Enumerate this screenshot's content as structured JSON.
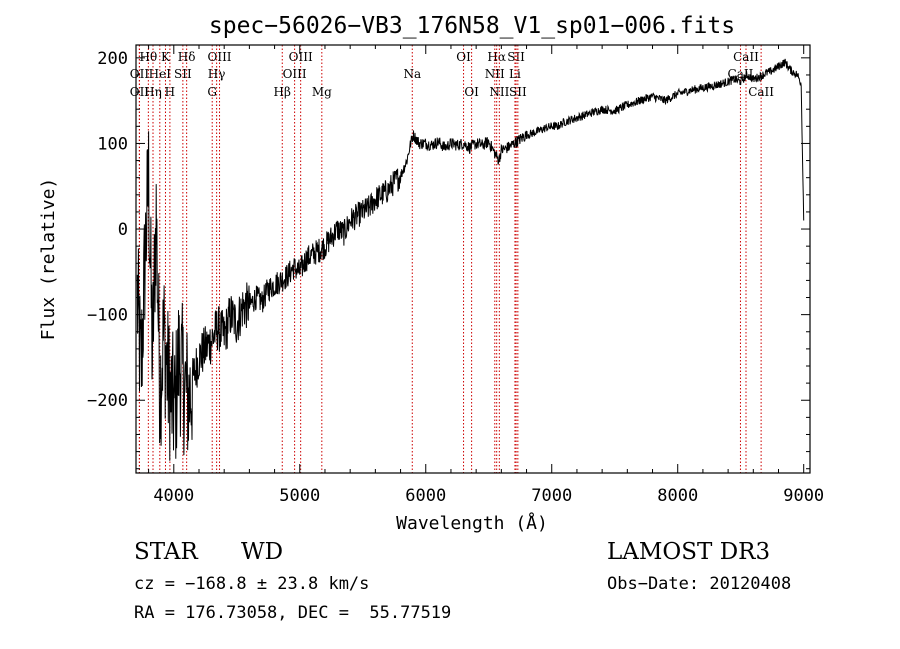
{
  "chart_data": {
    "type": "line",
    "title": "spec−56026−VB3_176N58_V1_sp01−006.fits",
    "xlabel": "Wavelength (Å)",
    "ylabel": "Flux (relative)",
    "xlim": [
      3700,
      9050
    ],
    "ylim": [
      -285,
      215
    ],
    "xticks": [
      4000,
      5000,
      6000,
      7000,
      8000,
      9000
    ],
    "yticks": [
      -200,
      -100,
      0,
      100,
      200
    ],
    "series": [
      {
        "name": "flux",
        "x": [
          3710,
          3740,
          3770,
          3800,
          3830,
          3860,
          3890,
          3920,
          3950,
          3980,
          4010,
          4040,
          4080,
          4120,
          4160,
          4200,
          4250,
          4300,
          4350,
          4400,
          4450,
          4500,
          4550,
          4600,
          4650,
          4700,
          4750,
          4800,
          4850,
          4900,
          4950,
          5000,
          5050,
          5100,
          5150,
          5200,
          5250,
          5300,
          5350,
          5400,
          5450,
          5500,
          5550,
          5600,
          5650,
          5700,
          5750,
          5800,
          5850,
          5880,
          5900,
          5950,
          6000,
          6050,
          6100,
          6150,
          6200,
          6250,
          6300,
          6350,
          6400,
          6450,
          6500,
          6550,
          6580,
          6600,
          6650,
          6700,
          6750,
          6800,
          6850,
          6900,
          6950,
          7000,
          7050,
          7100,
          7200,
          7300,
          7400,
          7500,
          7600,
          7700,
          7800,
          7900,
          8000,
          8100,
          8200,
          8300,
          8400,
          8450,
          8500,
          8550,
          8600,
          8650,
          8700,
          8750,
          8800,
          8850,
          8900,
          8950,
          8980,
          8990,
          9000
        ],
        "y": [
          -80,
          -170,
          -40,
          60,
          -150,
          20,
          -190,
          -120,
          -170,
          -200,
          -210,
          -150,
          -180,
          -200,
          -170,
          -150,
          -140,
          -130,
          -115,
          -125,
          -100,
          -110,
          -90,
          -90,
          -80,
          -85,
          -70,
          -65,
          -60,
          -55,
          -45,
          -50,
          -35,
          -30,
          -25,
          -20,
          -10,
          0,
          -5,
          10,
          15,
          20,
          25,
          35,
          40,
          45,
          55,
          62,
          80,
          100,
          110,
          100,
          100,
          98,
          102,
          95,
          100,
          98,
          100,
          95,
          100,
          98,
          102,
          88,
          80,
          92,
          95,
          100,
          105,
          110,
          112,
          115,
          118,
          120,
          120,
          125,
          130,
          135,
          140,
          138,
          145,
          150,
          155,
          150,
          158,
          162,
          165,
          168,
          172,
          175,
          172,
          180,
          175,
          178,
          182,
          185,
          190,
          195,
          185,
          180,
          170,
          90,
          10
        ]
      }
    ],
    "line_markers": [
      {
        "label": "Hθ",
        "wl": 3798,
        "row": 0
      },
      {
        "label": "K",
        "wl": 3934,
        "row": 0
      },
      {
        "label": "Hδ",
        "wl": 4102,
        "row": 0
      },
      {
        "label": "OII",
        "wl": 3727,
        "row": 1
      },
      {
        "label": "HeI",
        "wl": 3889,
        "row": 1
      },
      {
        "label": "SII",
        "wl": 4072,
        "row": 1
      },
      {
        "label": "OII",
        "wl": 3727,
        "row": 2
      },
      {
        "label": "Hη",
        "wl": 3835,
        "row": 2
      },
      {
        "label": "H",
        "wl": 3969,
        "row": 2
      },
      {
        "label": "OIII",
        "wl": 4363,
        "row": 0
      },
      {
        "label": "Hγ",
        "wl": 4340,
        "row": 1
      },
      {
        "label": "G",
        "wl": 4305,
        "row": 2
      },
      {
        "label": "OIII",
        "wl": 5007,
        "row": 0
      },
      {
        "label": "OIII",
        "wl": 4959,
        "row": 1
      },
      {
        "label": "Hβ",
        "wl": 4861,
        "row": 2
      },
      {
        "label": "Mg",
        "wl": 5175,
        "row": 2
      },
      {
        "label": "Na",
        "wl": 5893,
        "row": 1
      },
      {
        "label": "OI",
        "wl": 6300,
        "row": 0
      },
      {
        "label": "OI",
        "wl": 6364,
        "row": 2
      },
      {
        "label": "Hα",
        "wl": 6563,
        "row": 0
      },
      {
        "label": "SII",
        "wl": 6717,
        "row": 0
      },
      {
        "label": "NII",
        "wl": 6548,
        "row": 1
      },
      {
        "label": "Li",
        "wl": 6708,
        "row": 1
      },
      {
        "label": "NII",
        "wl": 6584,
        "row": 2
      },
      {
        "label": "SII",
        "wl": 6731,
        "row": 2
      },
      {
        "label": "CaII",
        "wl": 8542,
        "row": 0
      },
      {
        "label": "CaII",
        "wl": 8498,
        "row": 1
      },
      {
        "label": "CaII",
        "wl": 8662,
        "row": 2
      }
    ]
  },
  "info": {
    "object_class": "STAR",
    "subclass": "WD",
    "survey": "LAMOST DR3",
    "cz": "cz = −168.8 ± 23.8 km/s",
    "obs_date": "Obs−Date: 20120408",
    "coords": "RA = 176.73058, DEC =  55.77519"
  }
}
